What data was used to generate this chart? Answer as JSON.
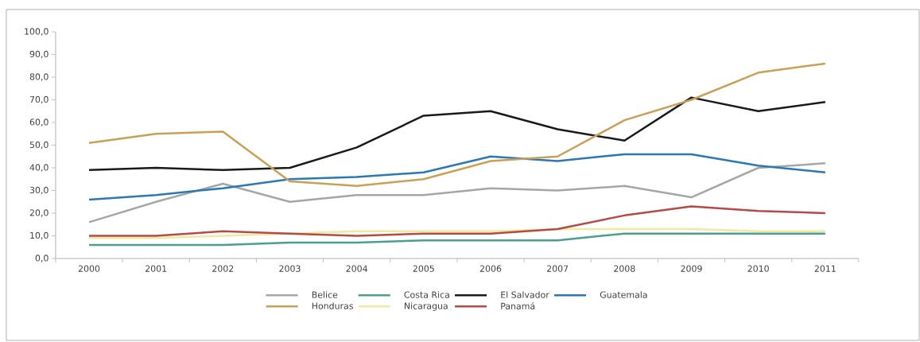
{
  "chart_data": {
    "type": "line",
    "categories": [
      "2000",
      "2001",
      "2002",
      "2003",
      "2004",
      "2005",
      "2006",
      "2007",
      "2008",
      "2009",
      "2010",
      "2011"
    ],
    "ylim": [
      0,
      100
    ],
    "yticks": [
      {
        "value": 0,
        "label": "0,0"
      },
      {
        "value": 10,
        "label": "10,0"
      },
      {
        "value": 20,
        "label": "20,0"
      },
      {
        "value": 30,
        "label": "30,0"
      },
      {
        "value": 40,
        "label": "40,0"
      },
      {
        "value": 50,
        "label": "50,0"
      },
      {
        "value": 60,
        "label": "60,0"
      },
      {
        "value": 70,
        "label": "70,0"
      },
      {
        "value": 80,
        "label": "80,0"
      },
      {
        "value": 90,
        "label": "90,0"
      },
      {
        "value": 100,
        "label": "100,0"
      }
    ],
    "legend": "bottom",
    "marker": "none",
    "line_style": "solid",
    "grid": false,
    "series": [
      {
        "name": "Belice",
        "color": "#a6a6a6",
        "values": [
          16,
          25,
          33,
          25,
          28,
          28,
          31,
          30,
          32,
          27,
          40,
          42
        ]
      },
      {
        "name": "Costa Rica",
        "color": "#4a9f8f",
        "values": [
          6,
          6,
          6,
          7,
          7,
          8,
          8,
          8,
          11,
          11,
          11,
          11
        ]
      },
      {
        "name": "El Salvador",
        "color": "#1a1a1a",
        "values": [
          39,
          40,
          39,
          40,
          49,
          63,
          65,
          57,
          52,
          71,
          65,
          69
        ]
      },
      {
        "name": "Guatemala",
        "color": "#2a78b4",
        "values": [
          26,
          28,
          31,
          35,
          36,
          38,
          45,
          43,
          46,
          46,
          41,
          38
        ]
      },
      {
        "name": "Honduras",
        "color": "#c9a055",
        "values": [
          51,
          55,
          56,
          34,
          32,
          35,
          43,
          45,
          61,
          70,
          82,
          86
        ]
      },
      {
        "name": "Nicaragua",
        "color": "#eeeaa0",
        "values": [
          9,
          9,
          10,
          null,
          12,
          12,
          12,
          13,
          13,
          13,
          12,
          12
        ]
      },
      {
        "name": "Panamá",
        "color": "#b64a47",
        "values": [
          10,
          10,
          12,
          11,
          10,
          11,
          11,
          13,
          19,
          23,
          21,
          20
        ]
      }
    ]
  }
}
